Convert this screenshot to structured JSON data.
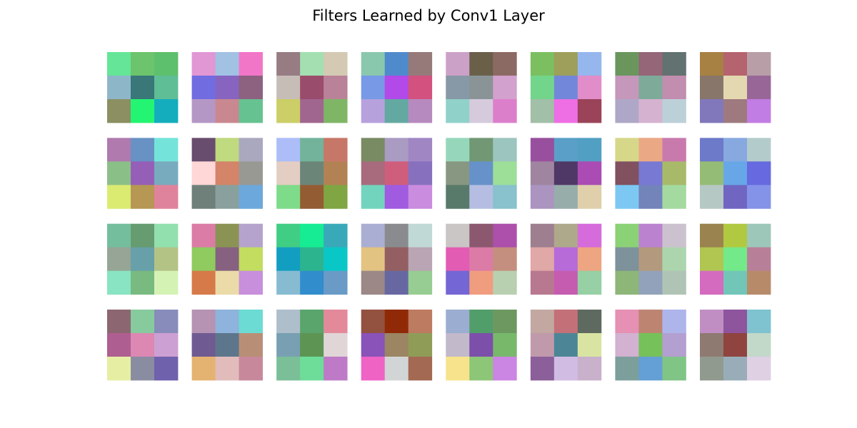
{
  "chart_data": {
    "type": "heatmap",
    "title": "Filters Learned by Conv1 Layer",
    "grid": false,
    "axes": "off",
    "layout": {
      "rows": 4,
      "columns": 8
    },
    "filter_size": [
      3,
      3
    ],
    "filters": [
      [
        [
          "#64e597",
          "#6cc46c",
          "#5dc06c"
        ],
        [
          "#8eb6c9",
          "#397779",
          "#5fbe96"
        ],
        [
          "#8b8f61",
          "#23f572",
          "#14adbd"
        ]
      ],
      [
        [
          "#e197d4",
          "#a1c2e3",
          "#f176c8"
        ],
        [
          "#726ce1",
          "#8664c0",
          "#8d6180"
        ],
        [
          "#b597c6",
          "#c98890",
          "#66c291"
        ]
      ],
      [
        [
          "#977c84",
          "#a3dfb0",
          "#d4cab3"
        ],
        [
          "#c6bdb6",
          "#9a4c6c",
          "#b98299"
        ],
        [
          "#ccce67",
          "#a1668f",
          "#7eb665"
        ]
      ],
      [
        [
          "#8ac8ad",
          "#4f8bcc",
          "#967a7a"
        ],
        [
          "#7799e6",
          "#b249e8",
          "#d3517f"
        ],
        [
          "#b7a1dd",
          "#63a9a1",
          "#b68abf"
        ]
      ],
      [
        [
          "#cca1c8",
          "#6a5f49",
          "#8c6a64"
        ],
        [
          "#8798a6",
          "#8a9497",
          "#d3a1cd"
        ],
        [
          "#90d2c9",
          "#d6cadd",
          "#dc7fcb"
        ]
      ],
      [
        [
          "#7bbf61",
          "#9e9f5a",
          "#96b6ee"
        ],
        [
          "#73d58b",
          "#7387da",
          "#e18dc9"
        ],
        [
          "#a2bfa8",
          "#ee6ee4",
          "#9a4359"
        ]
      ],
      [
        [
          "#6a965d",
          "#946678",
          "#627270"
        ],
        [
          "#c597ba",
          "#7eab99",
          "#c18eaf"
        ],
        [
          "#afa7c7",
          "#d5b3d0",
          "#bcd0d8"
        ]
      ],
      [
        [
          "#a78144",
          "#b5636e",
          "#b89ea6"
        ],
        [
          "#877669",
          "#e3d8b0",
          "#986798"
        ],
        [
          "#8178bb",
          "#9e7a7f",
          "#c17de3"
        ]
      ],
      [
        [
          "#b07aaf",
          "#6892c4",
          "#74e4da"
        ],
        [
          "#8bbf88",
          "#955fb8",
          "#78abbe"
        ],
        [
          "#dbeb71",
          "#b69754",
          "#df839c"
        ]
      ],
      [
        [
          "#684d6e",
          "#bfda7f",
          "#a9a8be"
        ],
        [
          "#fed7d6",
          "#d38469",
          "#999994"
        ],
        [
          "#6f807a",
          "#8aa09e",
          "#6ca8db"
        ]
      ],
      [
        [
          "#acbdf8",
          "#73b39c",
          "#c77767"
        ],
        [
          "#e4cdc2",
          "#6b8679",
          "#b28254"
        ],
        [
          "#7edb8a",
          "#945c33",
          "#7fa642"
        ]
      ],
      [
        [
          "#788b63",
          "#aa9bc3",
          "#a086c3"
        ],
        [
          "#a76b7d",
          "#cf5e7d",
          "#8770be"
        ],
        [
          "#73d4be",
          "#a05be0",
          "#c98cdf"
        ]
      ],
      [
        [
          "#96d7bb",
          "#729775",
          "#9dc5bf"
        ],
        [
          "#889781",
          "#6692c9",
          "#9ddf98"
        ],
        [
          "#587a6a",
          "#b5bee2",
          "#89c1cd"
        ]
      ],
      [
        [
          "#98509e",
          "#599fc8",
          "#529fc4"
        ],
        [
          "#a085a1",
          "#4f3866",
          "#ab4cb4"
        ],
        [
          "#ab94c0",
          "#97adaa",
          "#dfcfab"
        ]
      ],
      [
        [
          "#d7d78a",
          "#eaa884",
          "#c97aad"
        ],
        [
          "#815160",
          "#7879d3",
          "#a8ba6a"
        ],
        [
          "#7cc8f3",
          "#7384bb",
          "#a4daa0"
        ]
      ],
      [
        [
          "#6d79c9",
          "#87a9e0",
          "#b4cbcb"
        ],
        [
          "#95bc76",
          "#67a7e7",
          "#6669df"
        ],
        [
          "#b6c8c3",
          "#7066c1",
          "#8493e8"
        ]
      ],
      [
        [
          "#74be9e",
          "#679c71",
          "#92e0ae"
        ],
        [
          "#96a595",
          "#67a0a8",
          "#b3c385"
        ],
        [
          "#88e4c2",
          "#79ba80",
          "#d5f2b5"
        ]
      ],
      [
        [
          "#da7ca6",
          "#8b9354",
          "#b5a3cd"
        ],
        [
          "#8fcb5f",
          "#866180",
          "#c2dd5f"
        ],
        [
          "#d67a4a",
          "#ebdba9",
          "#c78fdc"
        ]
      ],
      [
        [
          "#40cd84",
          "#16ec93",
          "#39a9b9"
        ],
        [
          "#129ec1",
          "#2cb48e",
          "#0ac7c7"
        ],
        [
          "#87bbd2",
          "#328dcc",
          "#6a9bc6"
        ]
      ],
      [
        [
          "#abaed3",
          "#8a8b8e",
          "#c0d9d6"
        ],
        [
          "#e3c381",
          "#935f62",
          "#b9a5b3"
        ],
        [
          "#9b8887",
          "#6768a2",
          "#97cd93"
        ]
      ],
      [
        [
          "#c9c6c5",
          "#8b5870",
          "#ac50ab"
        ],
        [
          "#e25cb4",
          "#db7ba6",
          "#c48f7e"
        ],
        [
          "#7466d4",
          "#f09d7f",
          "#b8d0b0"
        ]
      ],
      [
        [
          "#9e7f8f",
          "#aea98a",
          "#d66bdc"
        ],
        [
          "#e0a8a6",
          "#b66bd8",
          "#eda582"
        ],
        [
          "#b8788f",
          "#c65cb0",
          "#96d0a4"
        ]
      ],
      [
        [
          "#8bd276",
          "#bb82d0",
          "#ccc2cf"
        ],
        [
          "#7d929a",
          "#b3997e",
          "#acd5ad"
        ],
        [
          "#8db678",
          "#92a2ba",
          "#b0c4b6"
        ]
      ],
      [
        [
          "#9a834f",
          "#b1c941",
          "#9cc7b9"
        ],
        [
          "#b0c651",
          "#73e98a",
          "#b87f98"
        ],
        [
          "#d56bbf",
          "#72c6b8",
          "#b78b6a"
        ]
      ],
      [
        [
          "#8c6671",
          "#86ca9d",
          "#888cba"
        ],
        [
          "#ae5e91",
          "#dd87b3",
          "#cda0d3"
        ],
        [
          "#e6eea3",
          "#8a8da2",
          "#7061ac"
        ]
      ],
      [
        [
          "#b692b3",
          "#8eb3dc",
          "#6bdbd3"
        ],
        [
          "#6f5b91",
          "#5e768c",
          "#b88f76"
        ],
        [
          "#e4b271",
          "#e1bcbb",
          "#c8889c"
        ]
      ],
      [
        [
          "#afbecb",
          "#59a56c",
          "#e3899a"
        ],
        [
          "#78a0b2",
          "#5e9453",
          "#e1d6d7"
        ],
        [
          "#7bbf98",
          "#6edd9a",
          "#be7ac7"
        ]
      ],
      [
        [
          "#93513f",
          "#902a06",
          "#bd7b61"
        ],
        [
          "#8953b9",
          "#9c8562",
          "#8f9c58"
        ],
        [
          "#ef63c5",
          "#d2d5d5",
          "#a36953"
        ]
      ],
      [
        [
          "#9badd0",
          "#529e6b",
          "#6d9860"
        ],
        [
          "#c2b9cb",
          "#7c4faa",
          "#77b86b"
        ],
        [
          "#f7e38c",
          "#8cc676",
          "#cb85e2"
        ]
      ],
      [
        [
          "#c3a8a2",
          "#c47079",
          "#5e6960"
        ],
        [
          "#c09aab",
          "#4c8696",
          "#dae4a2"
        ],
        [
          "#8b5f9a",
          "#d1bce3",
          "#c9b0cb"
        ]
      ],
      [
        [
          "#e690b4",
          "#bd8571",
          "#adb5eb"
        ],
        [
          "#d2b1d1",
          "#76c15a",
          "#b39fd0"
        ],
        [
          "#7c9f9b",
          "#649fd5",
          "#80c486"
        ]
      ],
      [
        [
          "#c18ec4",
          "#8e549e",
          "#7fc2d0"
        ],
        [
          "#8e7a71",
          "#8f443f",
          "#c2d9ca"
        ],
        [
          "#919a8e",
          "#99adb9",
          "#e0d0e4"
        ]
      ]
    ]
  }
}
